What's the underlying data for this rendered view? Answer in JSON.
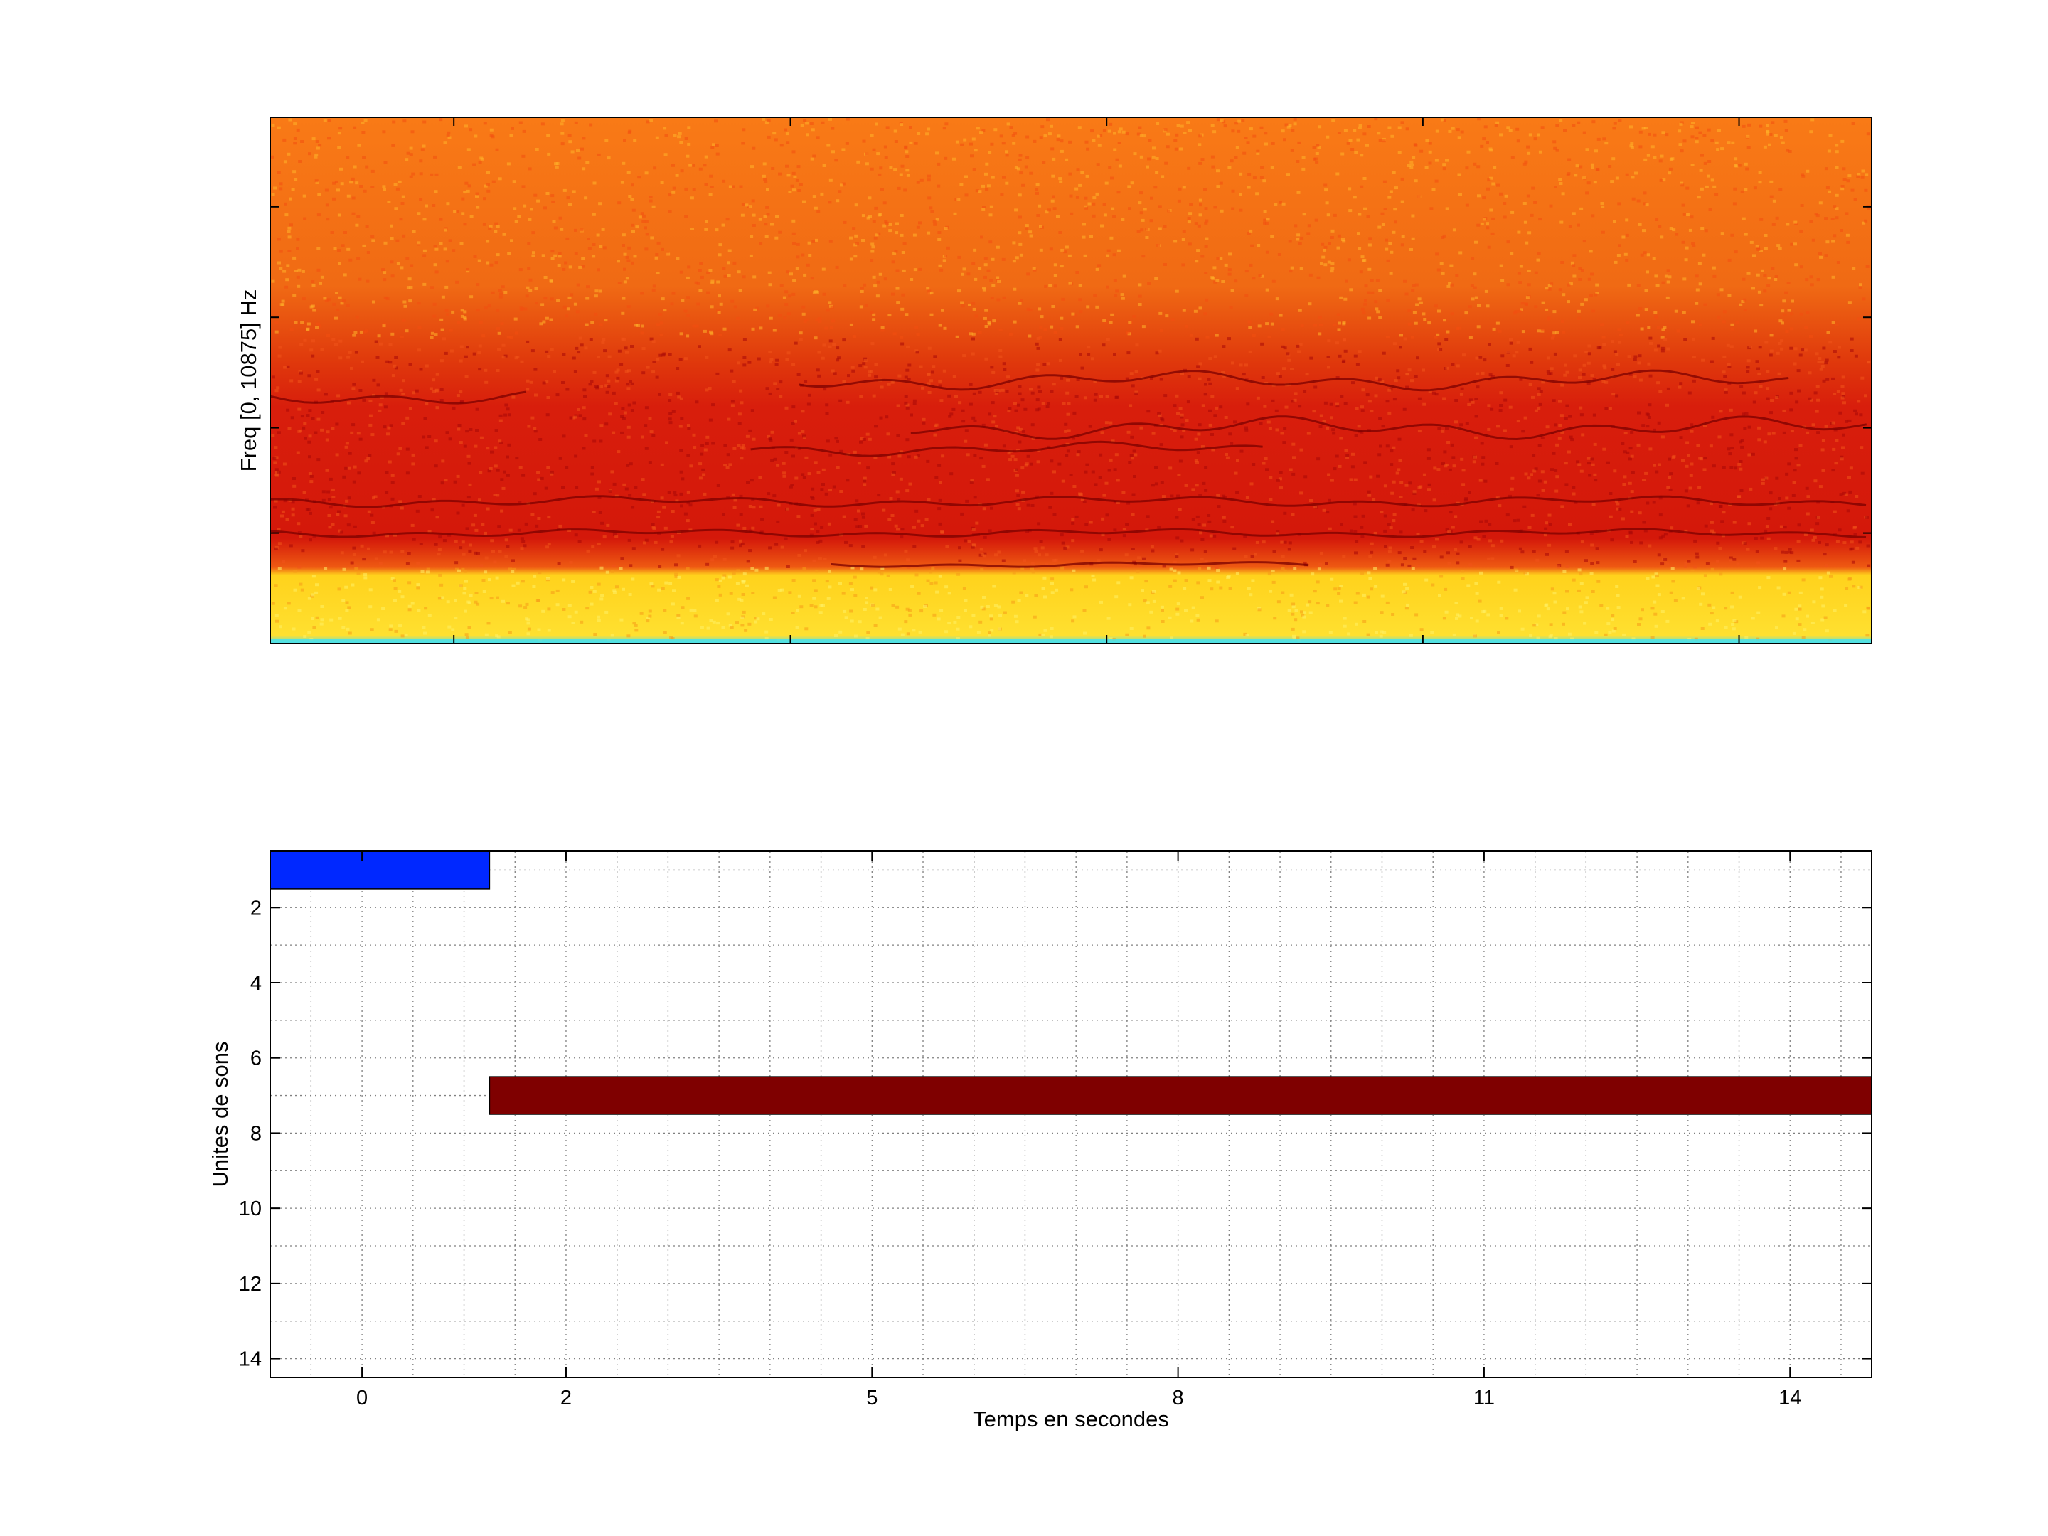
{
  "figure": {
    "background": "#ffffff"
  },
  "chart_data": [
    {
      "type": "heatmap",
      "title": "",
      "xlabel": "",
      "ylabel": "Freq [0, 10875] Hz",
      "x_ticklabels": [],
      "y_ticklabels": [],
      "xlim": [
        -0.9,
        14.8
      ],
      "colormap": "hot/jet spectrogram",
      "colors": {
        "upper_band": "#f97a16",
        "middle_band": "#d81e0c",
        "dark_traces": "#7a0000",
        "low_band": "#ffd21c",
        "bottom_line": "#4ee0e8"
      }
    },
    {
      "type": "bar",
      "orientation": "horizontal",
      "title": "",
      "xlabel": "Temps en secondes",
      "ylabel": "Unites de sons",
      "xlim": [
        -0.9,
        14.8
      ],
      "ylim": [
        0.5,
        14.5
      ],
      "y_reversed": true,
      "grid": true,
      "x_ticks": [
        0,
        2,
        5,
        8,
        11,
        14
      ],
      "x_ticklabels": [
        "0",
        "2",
        "5",
        "8",
        "11",
        "14"
      ],
      "y_ticks": [
        2,
        4,
        6,
        8,
        10,
        12,
        14
      ],
      "y_ticklabels": [
        "2",
        "4",
        "6",
        "8",
        "10",
        "12",
        "14"
      ],
      "segments": [
        {
          "unit": 1,
          "start": -0.9,
          "end": 1.25,
          "color": "#0028ff"
        },
        {
          "unit": 7,
          "start": 1.25,
          "end": 14.8,
          "color": "#7f0000"
        }
      ]
    }
  ]
}
